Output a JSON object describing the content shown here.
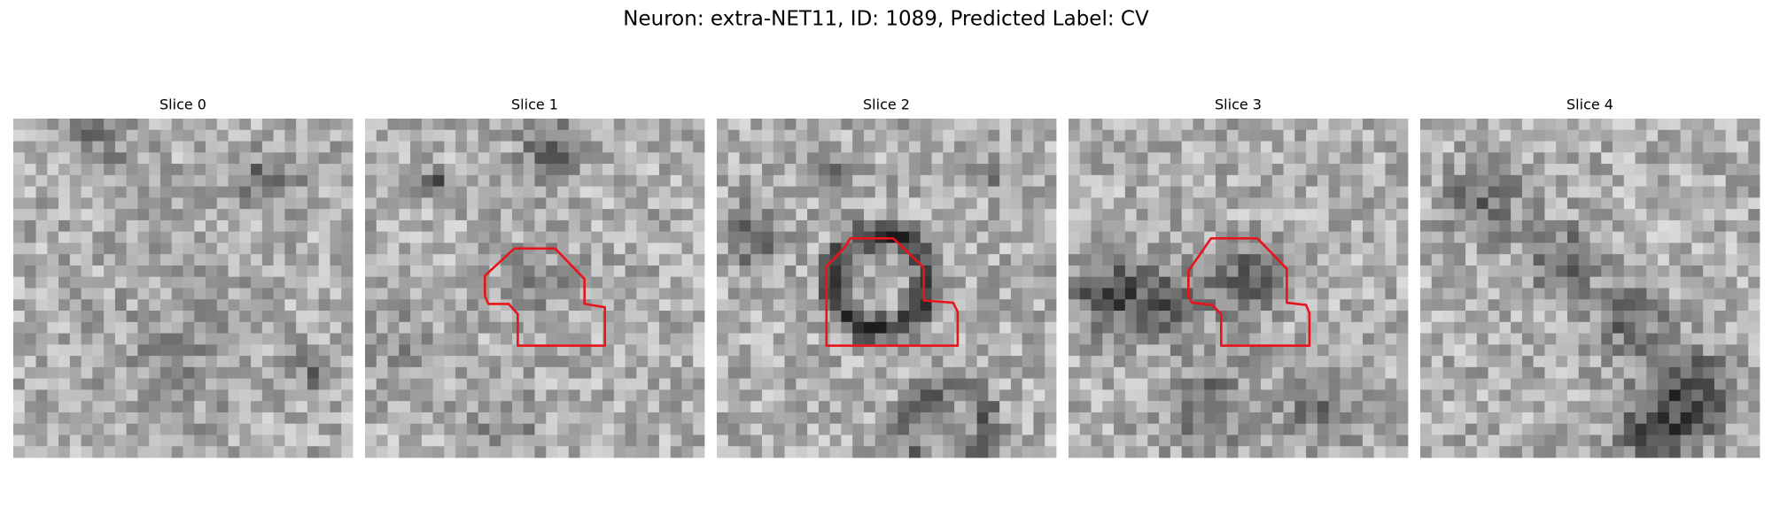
{
  "header": {
    "title": "Neuron: extra-NET11, ID: 1089, Predicted Label: CV"
  },
  "panels": [
    {
      "title": "Slice 0"
    },
    {
      "title": "Slice 1"
    },
    {
      "title": "Slice 2"
    },
    {
      "title": "Slice 3"
    },
    {
      "title": "Slice 4"
    }
  ]
}
